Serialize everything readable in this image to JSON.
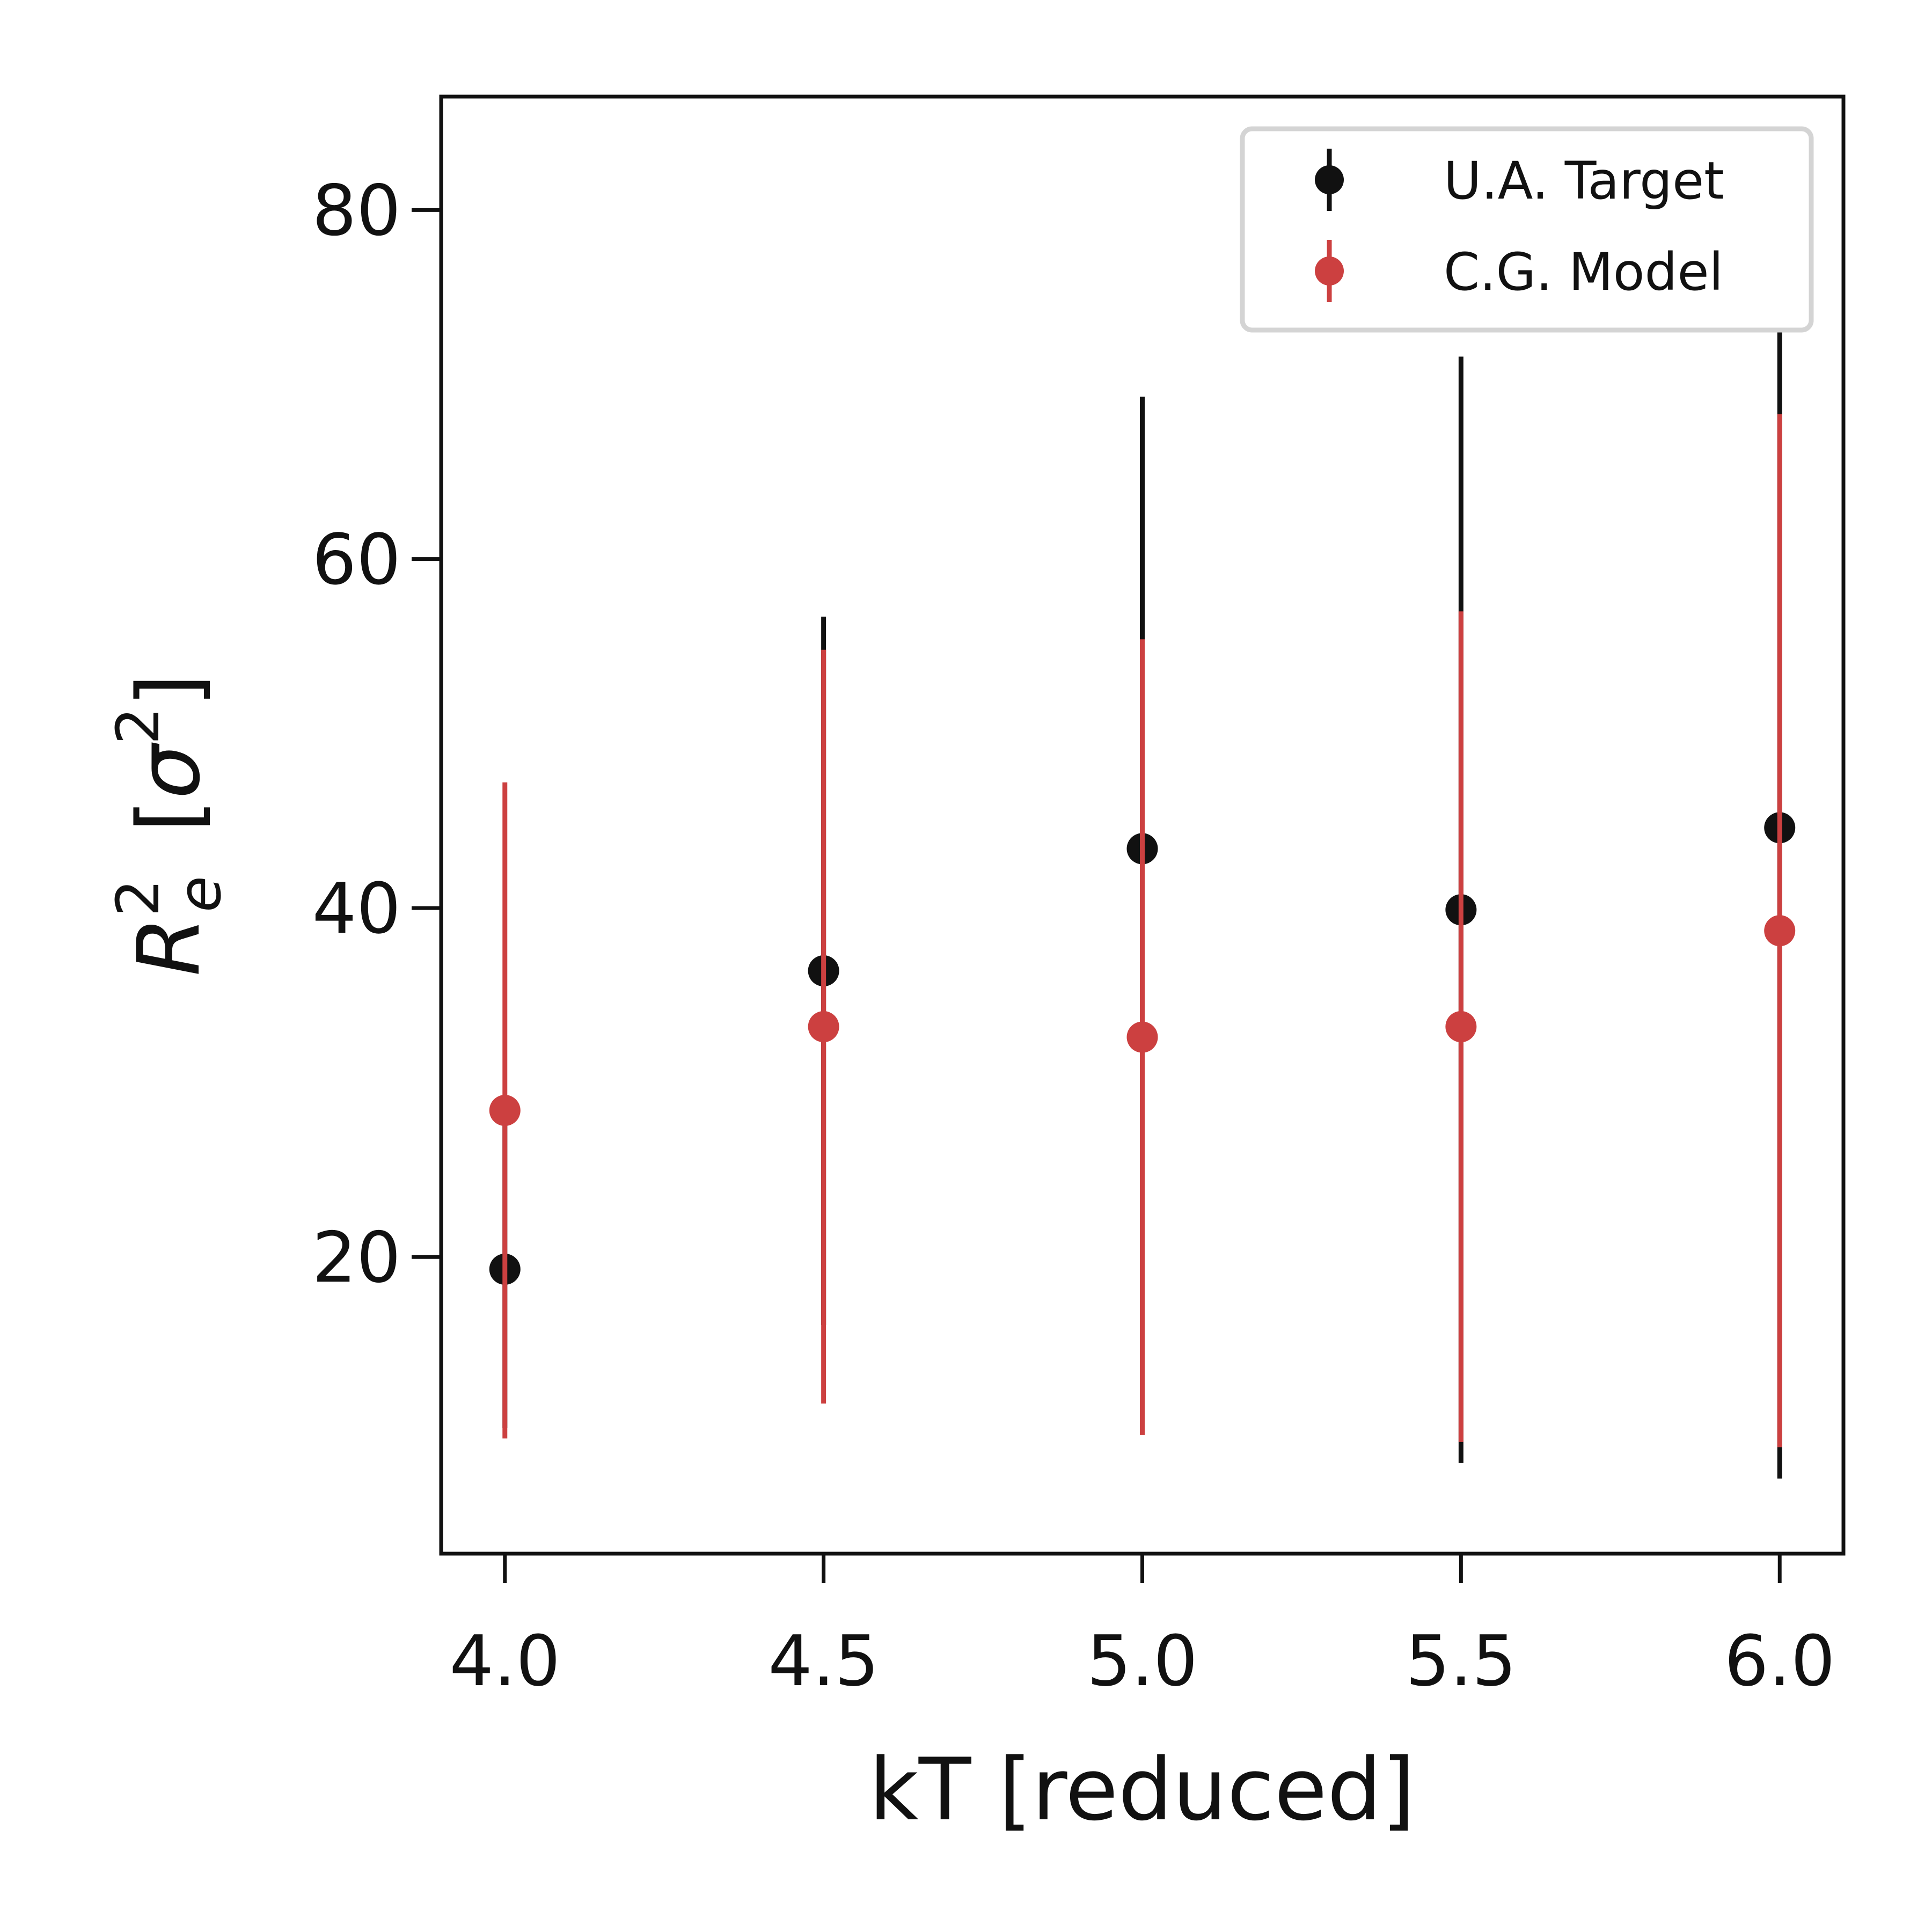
{
  "chart_data": {
    "type": "scatter",
    "title": "",
    "xlabel": "kT [reduced]",
    "ylabel": {
      "base": "R",
      "superscript": "2",
      "subscript": "e",
      "units_open": "[",
      "units_symbol": "σ",
      "units_superscript": "2",
      "units_close": "]"
    },
    "xlim": [
      3.9,
      6.1
    ],
    "ylim": [
      3,
      86.5
    ],
    "xticks": [
      4.0,
      4.5,
      5.0,
      5.5,
      6.0
    ],
    "xtick_labels": [
      "4.0",
      "4.5",
      "5.0",
      "5.5",
      "6.0"
    ],
    "yticks": [
      20,
      40,
      60,
      80
    ],
    "ytick_labels": [
      "20",
      "40",
      "60",
      "80"
    ],
    "grid": false,
    "legend_position": "top-right",
    "series": [
      {
        "name": "U.A. Target",
        "color": "#111111",
        "x": [
          4.0,
          4.5,
          5.0,
          5.5,
          6.0
        ],
        "y": [
          19.3,
          36.4,
          43.4,
          39.9,
          44.6
        ],
        "yerr": [
          9.1,
          20.3,
          25.9,
          31.7,
          37.3
        ]
      },
      {
        "name": "C.G. Model",
        "color": "#cc4040",
        "x": [
          4.0,
          4.5,
          5.0,
          5.5,
          6.0
        ],
        "y": [
          28.4,
          33.2,
          32.6,
          33.2,
          38.7
        ],
        "yerr": [
          18.8,
          21.6,
          22.8,
          23.8,
          29.6
        ]
      }
    ]
  }
}
